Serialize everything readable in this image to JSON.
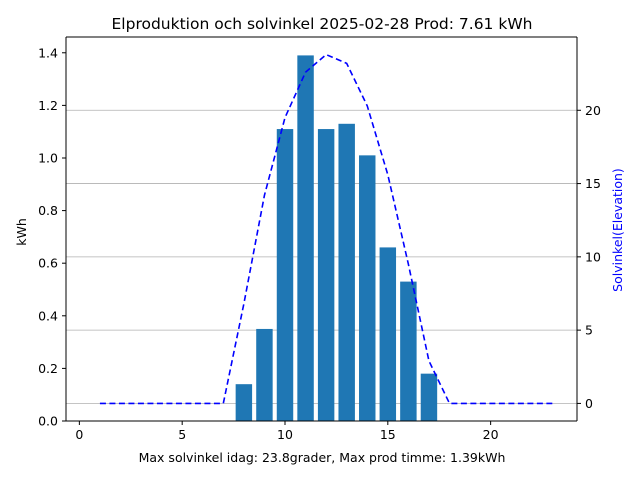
{
  "chart_data": {
    "type": "bar",
    "title": "Elproduktion och solvinkel 2025-02-28 Prod: 7.61 kWh",
    "xlabel": "Max solvinkel idag: 23.8grader, Max prod timme: 1.39kWh",
    "ylabel": "kWh",
    "y2label": "Solvinkel(Elevation)",
    "xlim": [
      -0.65,
      24.2
    ],
    "ylim": [
      0,
      1.46
    ],
    "y2lim": [
      -1.2,
      25.0
    ],
    "x_ticks": [
      0,
      5,
      10,
      15,
      20
    ],
    "y_ticks": [
      0.0,
      0.2,
      0.4,
      0.6,
      0.8,
      1.0,
      1.2,
      1.4
    ],
    "y_tick_labels": [
      "0.0",
      "0.2",
      "0.4",
      "0.6",
      "0.8",
      "1.0",
      "1.2",
      "1.4"
    ],
    "y2_ticks": [
      0,
      5,
      10,
      15,
      20
    ],
    "grid": "horizontal lines on secondary axis",
    "series": [
      {
        "type": "bar",
        "color": "#1f77b4",
        "x": [
          8,
          9,
          10,
          11,
          12,
          13,
          14,
          15,
          16,
          17
        ],
        "values": [
          0.14,
          0.35,
          1.11,
          1.39,
          1.11,
          1.13,
          1.01,
          0.66,
          0.53,
          0.18
        ]
      },
      {
        "type": "line",
        "axis": "secondary",
        "style": "dashed",
        "color": "#0000ff",
        "x": [
          1,
          2,
          3,
          4,
          5,
          6,
          7,
          8,
          9,
          10,
          11,
          12,
          13,
          14,
          15,
          16,
          17,
          18,
          19,
          20,
          21,
          22,
          23
        ],
        "values": [
          0,
          0,
          0,
          0,
          0,
          0,
          0,
          6.8,
          14.2,
          19.5,
          22.6,
          23.8,
          23.2,
          20.3,
          15.6,
          9.5,
          2.9,
          0,
          0,
          0,
          0,
          0,
          0
        ]
      }
    ]
  },
  "colors": {
    "bar": "#1f77b4",
    "line": "#0000ff",
    "grid": "#b0b0b0",
    "axis": "#000000"
  }
}
